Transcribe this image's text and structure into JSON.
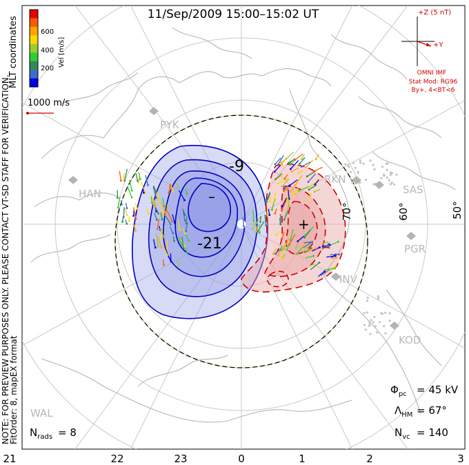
{
  "title": "11/Sep/2009 15:00–15:02 UT",
  "colorbar": {
    "label": "Vel [m/s]",
    "ticks": [
      "600",
      "400",
      "200"
    ],
    "colors": [
      "#e60000",
      "#ff5a00",
      "#ffa500",
      "#ffd700",
      "#9acd32",
      "#32cd32",
      "#2e8b57",
      "#3a6fc9",
      "#0000e6"
    ]
  },
  "coordinates_label": "MLT coordinates",
  "vector_scale": {
    "label": "1000 m/s"
  },
  "imf": {
    "z_label": "+Z (5 nT)",
    "y_label": "+Y",
    "source": "OMNI IMF",
    "model": "Stat Mod: RG96",
    "condition": "By+, 4<BT<6"
  },
  "contours": {
    "neg_label_1": "-9",
    "neg_label_2": "-21",
    "neg_center": "–",
    "pos_center": "+"
  },
  "latitude_labels": [
    "70°",
    "60°",
    "50°"
  ],
  "stations": [
    "PYK",
    "HAN",
    "RKN",
    "SAS",
    "PGR",
    "INV",
    "KOD",
    "WAL"
  ],
  "stats": {
    "phi_pc": "= 45 kV",
    "lambda_hm": "= 67°",
    "n_vc": "= 140",
    "n_rads": "= 8"
  },
  "side_note_1": "NOTE: FOR PREVIEW PURPOSES ONLY. PLEASE CONTACT VT-SD STAFF FOR VERIFICATION.",
  "side_note_2": "FitOrder: 8, mapEX format",
  "mlt_ticks": [
    "21",
    "22",
    "23",
    "0",
    "1",
    "2",
    "3"
  ],
  "colors": {
    "negative_fill": "#8f97e6",
    "positive_fill": "#e9a3a3",
    "neg_contour": "#0000c0",
    "pos_contour": "#d00000",
    "boundary": "#000000"
  }
}
